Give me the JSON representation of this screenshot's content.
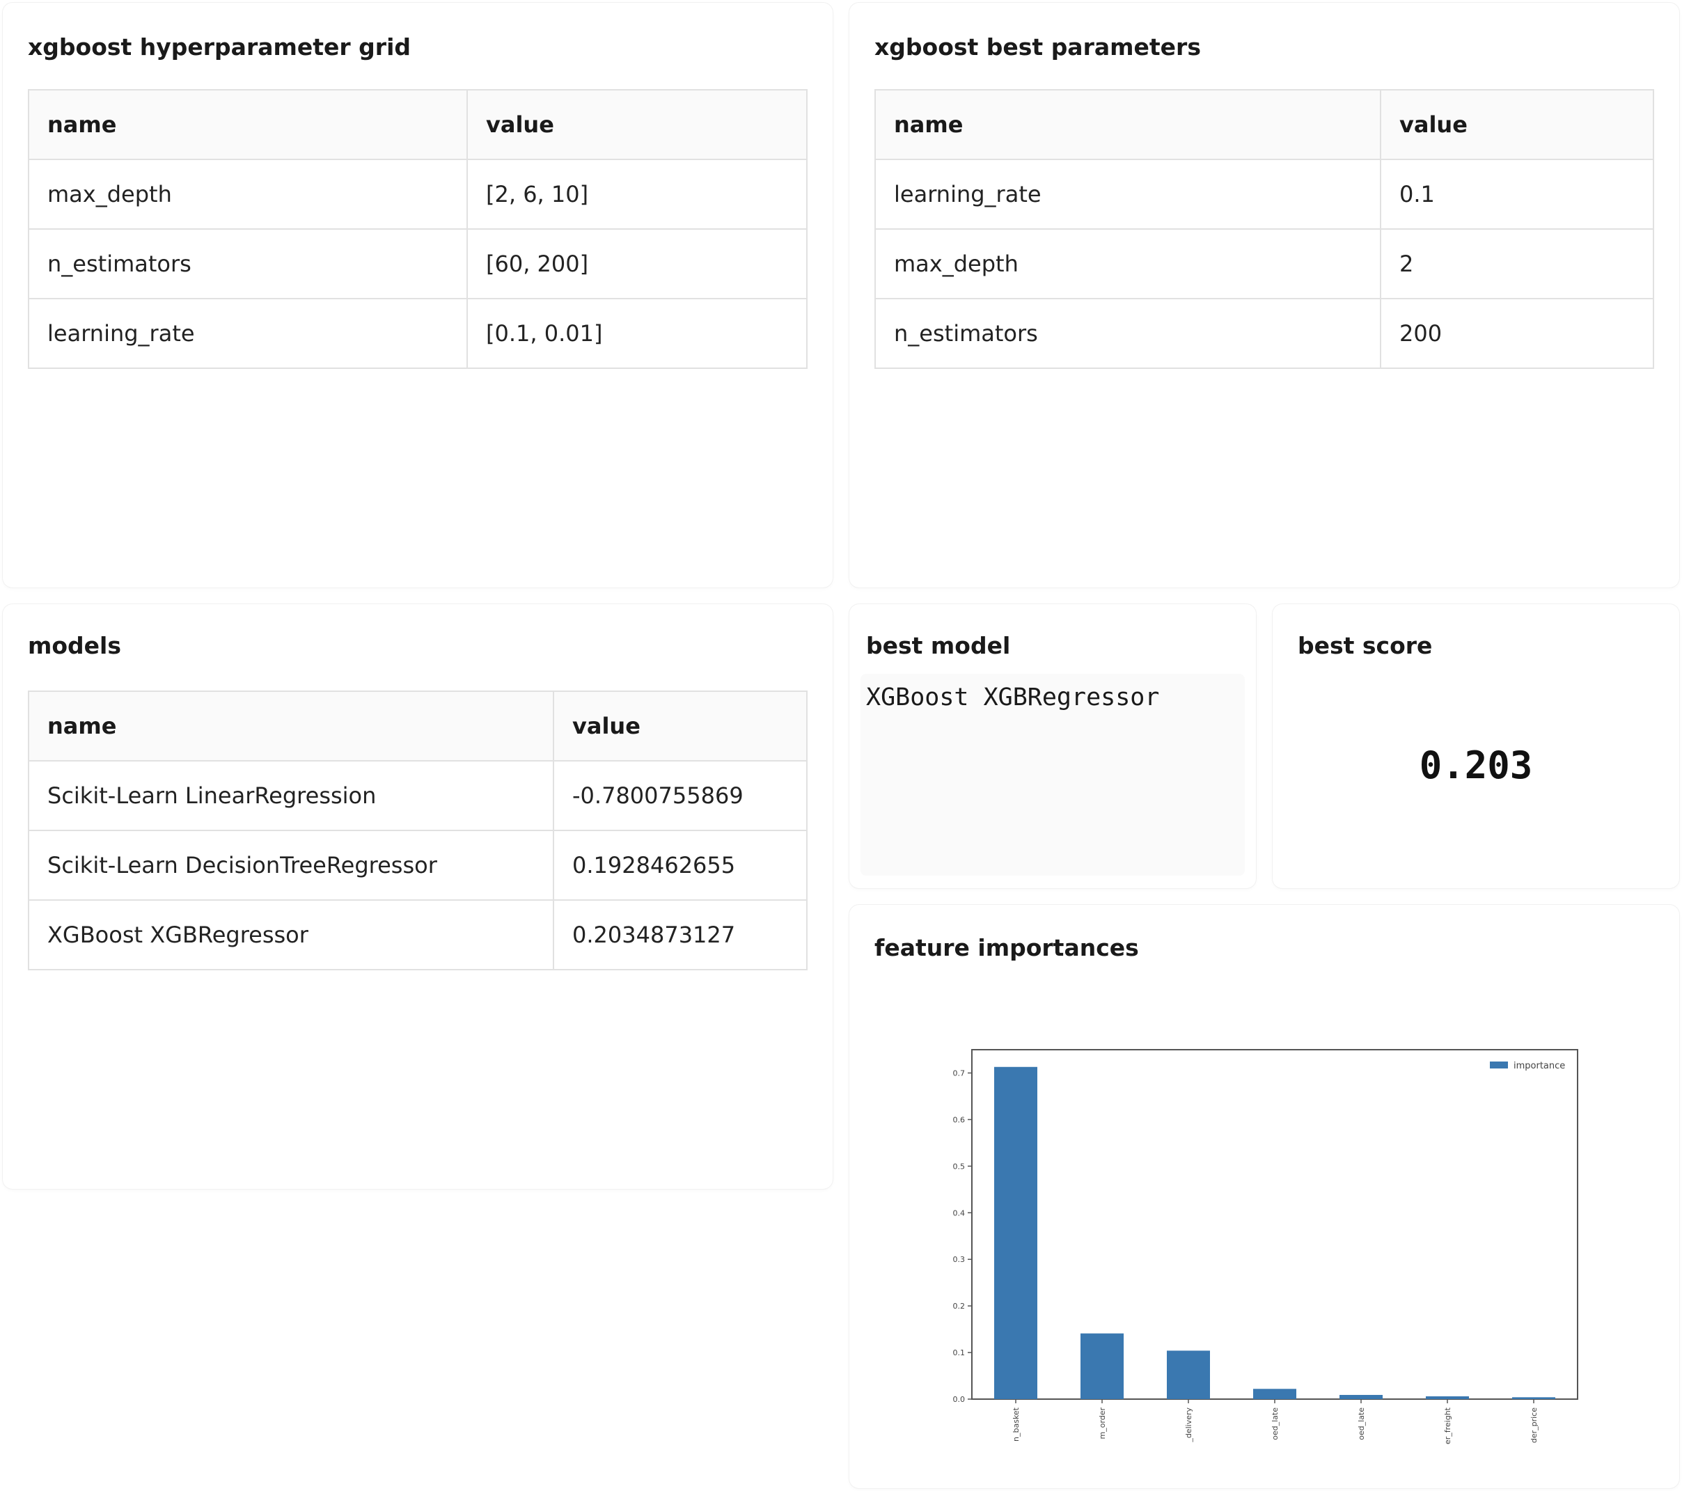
{
  "grid_card": {
    "title": "xgboost hyperparameter grid",
    "header": {
      "name": "name",
      "value": "value"
    },
    "rows": [
      {
        "name": "max_depth",
        "value": "[2, 6, 10]"
      },
      {
        "name": "n_estimators",
        "value": "[60, 200]"
      },
      {
        "name": "learning_rate",
        "value": "[0.1, 0.01]"
      }
    ]
  },
  "best_params_card": {
    "title": "xgboost best parameters",
    "header": {
      "name": "name",
      "value": "value"
    },
    "rows": [
      {
        "name": "learning_rate",
        "value": "0.1"
      },
      {
        "name": "max_depth",
        "value": "2"
      },
      {
        "name": "n_estimators",
        "value": "200"
      }
    ]
  },
  "models_card": {
    "title": "models",
    "header": {
      "name": "name",
      "value": "value"
    },
    "rows": [
      {
        "name": "Scikit-Learn LinearRegression",
        "value": "-0.7800755869"
      },
      {
        "name": "Scikit-Learn DecisionTreeRegressor",
        "value": "0.1928462655"
      },
      {
        "name": "XGBoost XGBRegressor",
        "value": "0.2034873127"
      }
    ]
  },
  "best_model_card": {
    "title": "best model",
    "value": "XGBoost XGBRegressor"
  },
  "best_score_card": {
    "title": "best score",
    "value": "0.203"
  },
  "feature_card": {
    "title": "feature importances"
  },
  "chart_data": {
    "type": "bar",
    "categories": [
      "n_basket",
      "m_order",
      "_delivery",
      "oed_late",
      "oed_late",
      "er_freight",
      "der_price"
    ],
    "series": [
      {
        "name": "importance",
        "values": [
          0.713,
          0.141,
          0.104,
          0.022,
          0.009,
          0.006,
          0.004
        ]
      }
    ],
    "ylim": [
      0,
      0.75
    ],
    "yticks": [
      "0.0",
      "0.1",
      "0.2",
      "0.3",
      "0.4",
      "0.5",
      "0.6",
      "0.7"
    ],
    "legend": "top-right",
    "grid": false,
    "bar_color": "#3a78b0"
  }
}
